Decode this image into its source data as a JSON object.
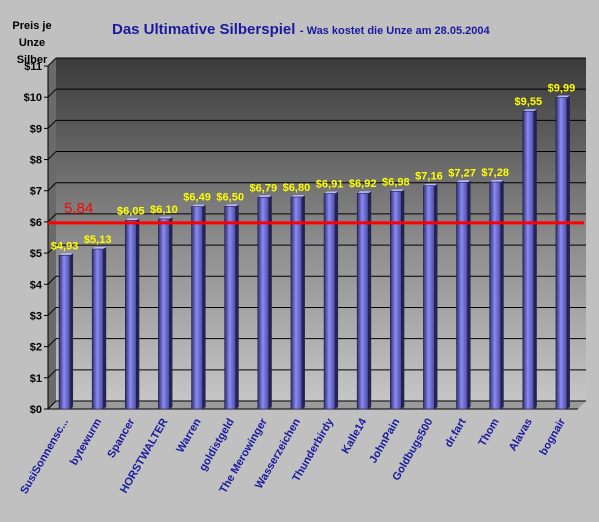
{
  "chart_data": {
    "type": "bar",
    "title": "Das Ultimative Silberspiel",
    "subtitle": "Was kostet die Unze am 28.05.2004",
    "ylabel": "Preis je Unze Silber",
    "xlabel": "",
    "ylim": [
      0,
      11
    ],
    "yticks": [
      "$0",
      "$1",
      "$2",
      "$3",
      "$4",
      "$5",
      "$6",
      "$7",
      "$8",
      "$9",
      "$10",
      "$11"
    ],
    "categories": [
      "SusiSonnensc...",
      "bytewurm",
      "Spancer",
      "HORSTWALTER",
      "Warren",
      "goldistgeld",
      "The Merowinger",
      "Wasserzeichen",
      "Thunderbirdy",
      "Kalle14",
      "JohnPain",
      "Goldbugs500",
      "dr.fart",
      "Thom",
      "Alavas",
      "bognair"
    ],
    "values": [
      4.93,
      5.13,
      6.05,
      6.1,
      6.49,
      6.5,
      6.79,
      6.8,
      6.91,
      6.92,
      6.98,
      7.16,
      7.27,
      7.28,
      9.55,
      9.99
    ],
    "data_labels": [
      "$4,93",
      "$5,13",
      "$6,05",
      "$6,10",
      "$6,49",
      "$6,50",
      "$6,79",
      "$6,80",
      "$6,91",
      "$6,92",
      "$6,98",
      "$7,16",
      "$7,27",
      "$7,28",
      "$9,55",
      "$9,99"
    ],
    "reference_line": {
      "value": 5.84,
      "label": "5,84",
      "color": "#ff0000"
    },
    "grid": true,
    "legend": "none",
    "colors": {
      "bar": "#8080f0",
      "bar_dark": "#3a3a80",
      "data_label": "#ffff00",
      "title": "#1a1aa0",
      "category_label": "#1a1aa0",
      "background": "#c0c0c0"
    }
  }
}
